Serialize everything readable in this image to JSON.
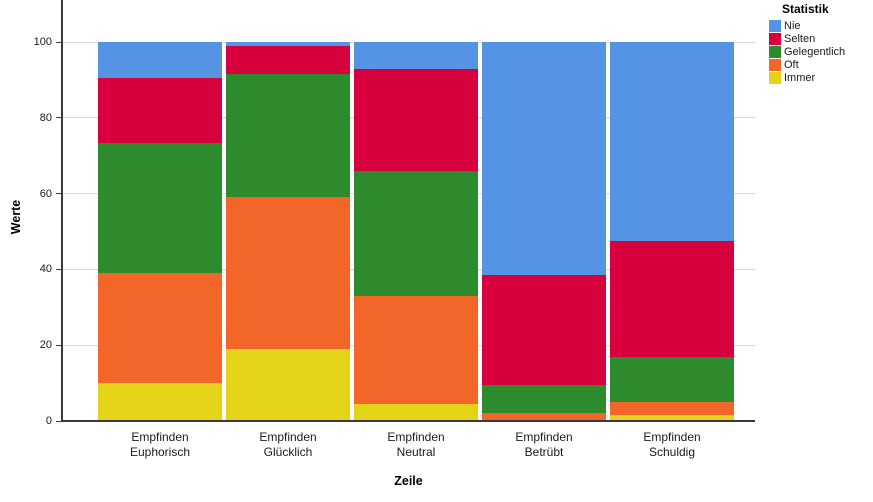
{
  "chart_data": {
    "type": "bar",
    "variant": "stacked-percent-vertical",
    "title": "",
    "xlabel": "Zeile",
    "ylabel": "Werte",
    "ylim": [
      0,
      100
    ],
    "yticks": [
      0,
      20,
      40,
      60,
      80,
      100
    ],
    "grid": true,
    "legend": {
      "title": "Statistik",
      "position": "top-right",
      "entries": [
        "Nie",
        "Selten",
        "Gelegentlich",
        "Oft",
        "Immer"
      ]
    },
    "categories": [
      "Empfinden Euphorisch",
      "Empfinden Glücklich",
      "Empfinden Neutral",
      "Empfinden Betrübt",
      "Empfinden Schuldig"
    ],
    "category_label_lines": [
      [
        "Empfinden",
        "Euphorisch"
      ],
      [
        "Empfinden",
        "Glücklich"
      ],
      [
        "Empfinden",
        "Neutral"
      ],
      [
        "Empfinden",
        "Betrübt"
      ],
      [
        "Empfinden",
        "Schuldig"
      ]
    ],
    "stack_order_bottom_to_top": [
      "Immer",
      "Oft",
      "Gelegentlich",
      "Selten",
      "Nie"
    ],
    "series": [
      {
        "name": "Nie",
        "color": "#5494e3",
        "values": [
          9.5,
          1,
          7,
          61.5,
          52.5
        ]
      },
      {
        "name": "Selten",
        "color": "#d6003c",
        "values": [
          17,
          7.5,
          27,
          29,
          30.5
        ]
      },
      {
        "name": "Gelegentlich",
        "color": "#2e8b2d",
        "values": [
          34.5,
          32.5,
          33,
          7.5,
          12
        ]
      },
      {
        "name": "Oft",
        "color": "#f2662a",
        "values": [
          29,
          40,
          28.5,
          2,
          3.5
        ]
      },
      {
        "name": "Immer",
        "color": "#e4d318",
        "values": [
          10,
          19,
          4.5,
          0,
          1.5
        ]
      }
    ],
    "colors": {
      "grid": "#d9d9d9",
      "axis": "#3a3a3a",
      "background": "#ffffff"
    }
  }
}
